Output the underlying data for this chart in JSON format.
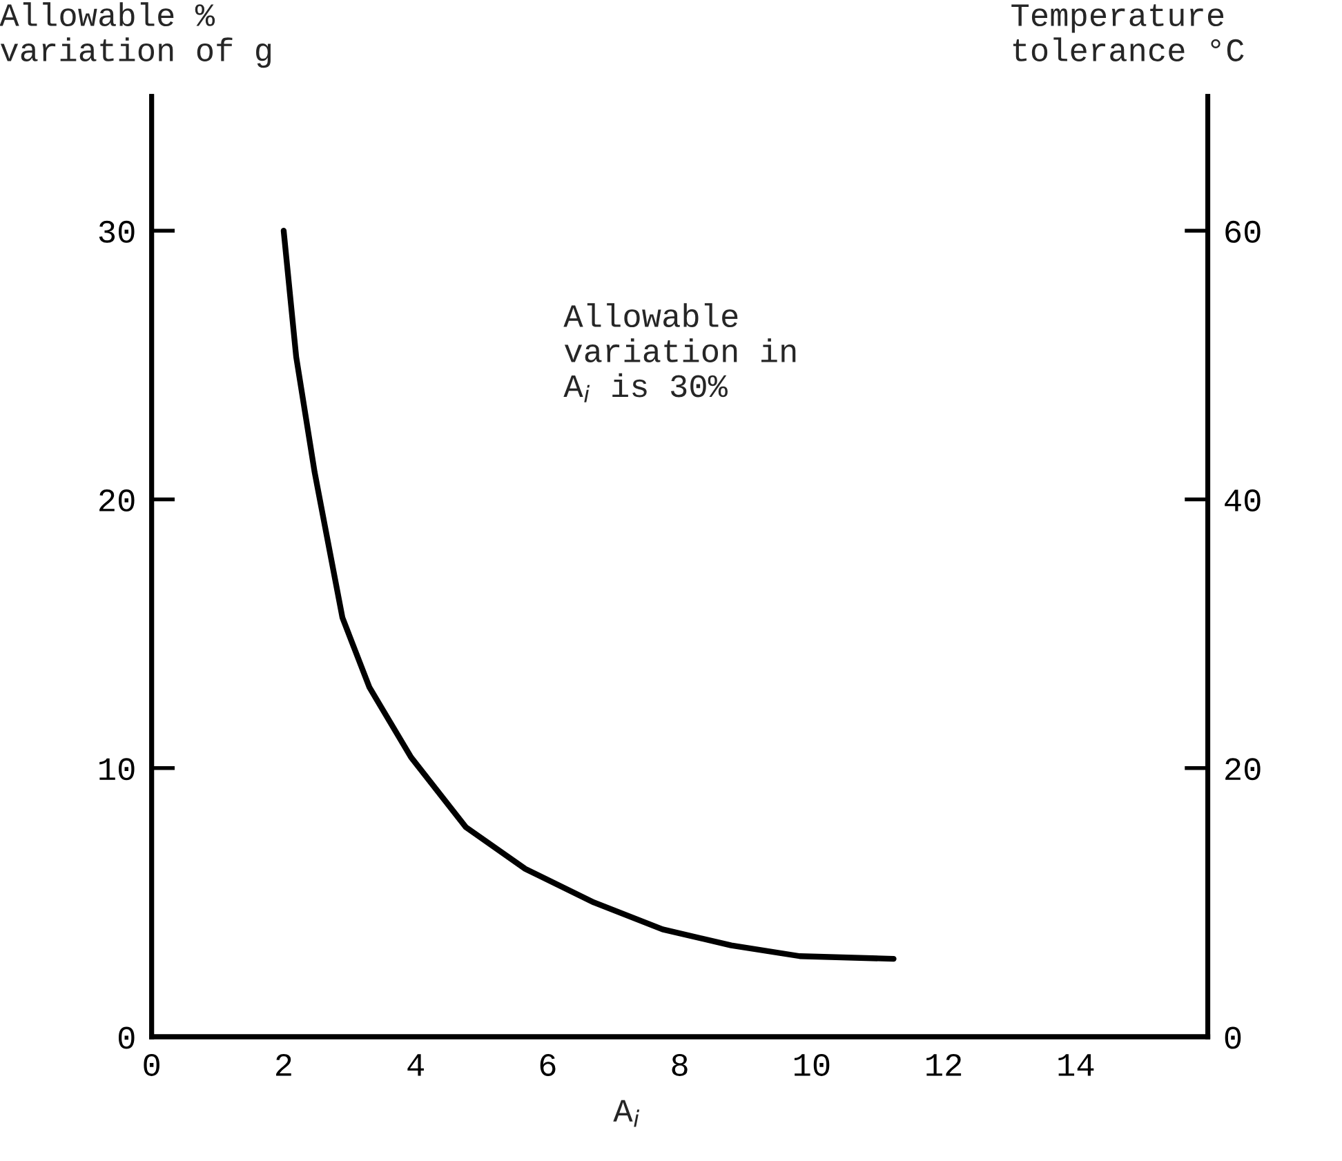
{
  "chart_data": {
    "type": "line",
    "xlabel": "A$_{i}$",
    "ylabel": "Allowable %\nvariation of g",
    "y2label": "Temperature\ntolerance °C",
    "annotations": [
      "Allowable\nvariation in\nA$_{i}$ is 30%"
    ],
    "series": [
      {
        "color": "#000000",
        "x": [
          2.0,
          2.19,
          2.47,
          2.89,
          3.3,
          3.93,
          4.76,
          5.66,
          6.7,
          7.74,
          8.78,
          9.82,
          11.24
        ],
        "values": [
          30.0,
          25.3,
          21.0,
          15.6,
          13.0,
          10.4,
          7.8,
          6.25,
          5.0,
          4.0,
          3.4,
          3.0,
          2.9
        ]
      }
    ],
    "xlim": [
      0,
      16
    ],
    "xticks": [
      0,
      2,
      4,
      6,
      8,
      10,
      12,
      14
    ],
    "ylim": [
      0,
      35
    ],
    "yticks": [
      0,
      10,
      20,
      30
    ],
    "y2lim": [
      0,
      70
    ],
    "y2ticks": [
      0,
      20,
      40,
      60
    ],
    "grid": false,
    "legend": false,
    "marker": "none",
    "line_style": "solid"
  }
}
